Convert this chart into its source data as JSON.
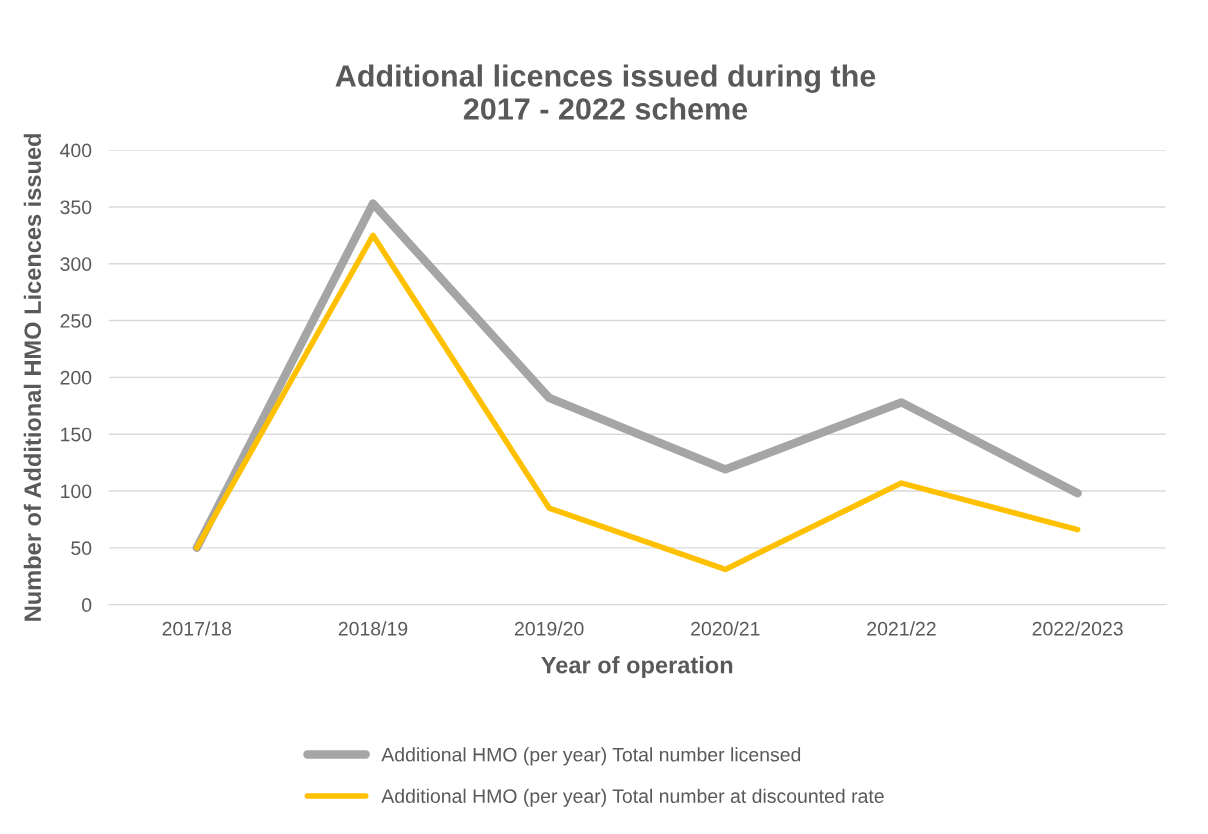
{
  "chart_data": {
    "type": "line",
    "title": "Additional licences issued during the\n2017 - 2022 scheme",
    "xlabel": "Year of operation",
    "ylabel": "Number of Additional HMO Licences issued",
    "categories": [
      "2017/18",
      "2018/19",
      "2019/20",
      "2020/21",
      "2021/22",
      "2022/2023"
    ],
    "series": [
      {
        "name": "Additional HMO (per year) Total number licensed",
        "color": "#a5a5a5",
        "values": [
          50,
          353,
          182,
          119,
          178,
          98
        ]
      },
      {
        "name": "Additional HMO (per year) Total number at discounted rate",
        "color": "#ffc000",
        "values": [
          50,
          325,
          85,
          31,
          107,
          66
        ]
      }
    ],
    "ylim": [
      0,
      400
    ],
    "yticks": [
      0,
      50,
      100,
      150,
      200,
      250,
      300,
      350,
      400
    ],
    "grid": "y",
    "legend": "bottom",
    "marker": "none",
    "line_style": "solid"
  }
}
